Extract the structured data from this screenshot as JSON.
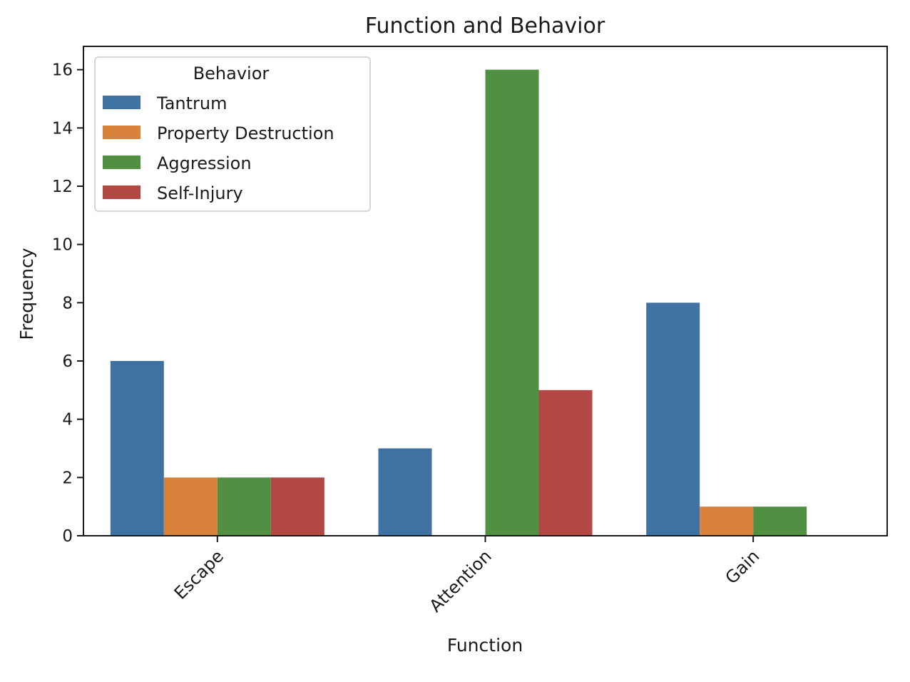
{
  "chart_data": {
    "type": "bar",
    "title": "Function and Behavior",
    "xlabel": "Function",
    "ylabel": "Frequency",
    "categories": [
      "Escape",
      "Attention",
      "Gain"
    ],
    "ylim": [
      0,
      16.8
    ],
    "yticks": [
      0,
      2,
      4,
      6,
      8,
      10,
      12,
      14,
      16
    ],
    "grid": false,
    "legend": {
      "title": "Behavior",
      "placement": "top-left"
    },
    "series": [
      {
        "name": "Tantrum",
        "color": "#3f72a0",
        "values": [
          6,
          3,
          8
        ]
      },
      {
        "name": "Property Destruction",
        "color": "#d9823b",
        "values": [
          2,
          0,
          1
        ]
      },
      {
        "name": "Aggression",
        "color": "#519042",
        "values": [
          2,
          16,
          1
        ]
      },
      {
        "name": "Self-Injury",
        "color": "#b34743",
        "values": [
          2,
          5,
          0
        ]
      }
    ]
  }
}
